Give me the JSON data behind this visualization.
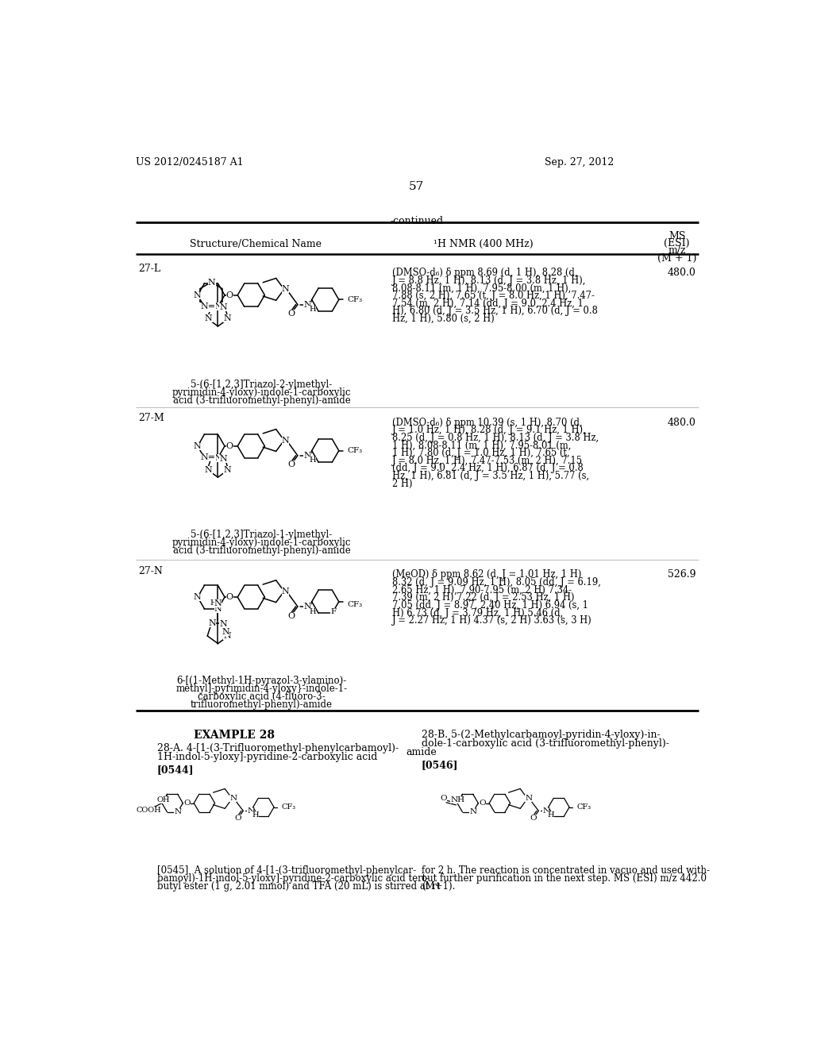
{
  "patent_number": "US 2012/0245187 A1",
  "patent_date": "Sep. 27, 2012",
  "page_number": "57",
  "continued_label": "-continued",
  "col1_header": "Structure/Chemical Name",
  "col2_header": "¹H NMR (400 MHz)",
  "col3_header_lines": [
    "MS",
    "(ESI)",
    "m/z",
    "(M + 1)"
  ],
  "row27L_id": "27-L",
  "row27L_name": "5-(6-[1,2,3]Triazol-2-ylmethyl-\npyrimidin-4-yloxy)-indole-1-carboxylic\nacid (3-trifluoromethyl-phenyl)-amide",
  "row27L_nmr": "(DMSO-d₆) δ ppm 8.69 (d, 1 H), 8.28 (d,\nJ = 8.8 Hz, 1 H), 8.13 (d, J = 3.8 Hz, 1 H),\n8.08-8.11 (m, 1 H), 7.95-8.00 (m, 1 H),\n7.88 (s, 2 H), 7.65 (t, J = 8.0 Hz, 1 H), 7.47-\n7.54 (m, 2 H), 7.14 (dd, J = 9.0, 2.4 Hz, 1\nH), 6.80 (d, J = 3.5 Hz, 1 H), 6.70 (d, J = 0.8\nHz, 1 H), 5.80 (s, 2 H)",
  "row27L_ms": "480.0",
  "row27M_id": "27-M",
  "row27M_name": "5-(6-[1,2,3]Triazol-1-ylmethyl-\npyrimidin-4-yloxy)-indole-1-carboxylic\nacid (3-trifluoromethyl-phenyl)-amide",
  "row27M_nmr": "(DMSO-d₆) δ ppm 10.39 (s, 1 H), 8.70 (d,\nJ = 1.0 Hz, 1 H), 8.28 (d, J = 9.1 Hz, 1 H),\n8.25 (d, J = 0.8 Hz, 1 H), 8.13 (d, J = 3.8 Hz,\n1 H), 8.08-8.11 (m, 1 H), 7.95-8.01 (m,\n1 H), 7.80 (d, J = 1.0 Hz, 1 H), 7.65 (t,\nJ = 8.0 Hz, 1 H), 7.47-7.53 (m, 2 H), 7.15\n(dd, J = 9.0, 2.4 Hz, 1 H), 6.87 (d, J = 0.8\nHz, 1 H), 6.81 (d, J = 3.5 Hz, 1 H), 5.77 (s,\n2 H)",
  "row27M_ms": "480.0",
  "row27N_id": "27-N",
  "row27N_name": "6-[(1-Methyl-1H-pyrazol-3-ylamino)-\nmethyl]-pyrimidin-4-yloxy}-indole-1-\ncarboxylic acid (4-fluoro-3-\ntrifluoromethyl-phenyl)-amide",
  "row27N_nmr": "(MeOD) δ ppm 8.62 (d, J = 1.01 Hz, 1 H)\n8.32 (d, J = 9.09 Hz, 1 H), 8.05 (dd, J = 6.19,\n2.65 Hz, 1 H), 7.90-7.95 (m, 2 H) 7.34-\n7.39 (m, 2 H) 7.22 (d, J = 2.53 Hz, 1 H)\n7.05 (dd, J = 8.97, 2.40 Hz, 1 H) 6.94 (s, 1\nH) 6.73 (d, J = 3.79 Hz, 1 H) 5.46 (d,\nJ = 2.27 Hz, 1 H) 4.37 (s, 2 H) 3.63 (s, 3 H)",
  "row27N_ms": "526.9",
  "ex28_title": "EXAMPLE 28",
  "ex28A_heading1": "28-A. 4-[1-(3-Trifluoromethyl-phenylcarbamoyl)-",
  "ex28A_heading2": "1H-indol-5-yloxy]-pyridine-2-carboxylic acid",
  "ex28A_ref": "[0544]",
  "ex28A_body": "[0545]  A solution of 4-[1-(3-trifluoromethyl-phenylcar-\nbamoyl)-1H-indol-5-yloxy]-pyridine-2-carboxylic acid tert-\nbutyl ester (1 g, 2.01 mmol) and TFA (20 mL) is stirred at rt",
  "ex28B_heading1": "28-B. 5-(2-Methylcarbamoyl-pyridin-4-yloxy)-in-",
  "ex28B_heading2": "dole-1-carboxylic acid (3-trifluoromethyl-phenyl)-",
  "ex28B_heading3": "amide",
  "ex28B_ref": "[0546]",
  "ex28B_body": "for 2 h. The reaction is concentrated in vacuo and used with-\nout further purification in the next step. MS (ESI) m/z 442.0\n(M+1)."
}
